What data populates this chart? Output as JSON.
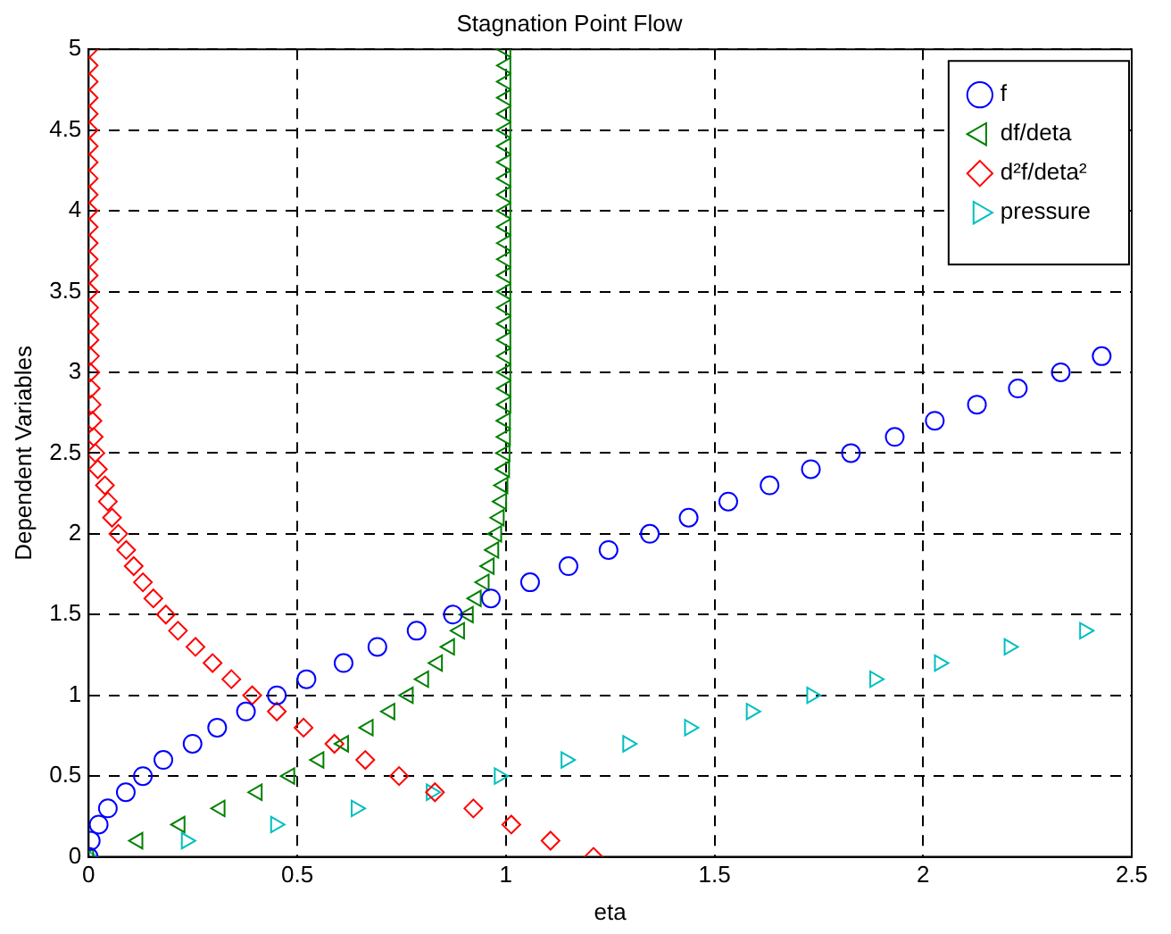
{
  "chart_data": {
    "type": "scatter",
    "title": "Stagnation Point Flow",
    "xlabel": "eta",
    "ylabel": "Dependent Variables",
    "xlim": [
      0,
      2.5
    ],
    "ylim": [
      0,
      5
    ],
    "xticks": [
      0,
      0.5,
      1,
      1.5,
      2,
      2.5
    ],
    "yticks": [
      0,
      0.5,
      1,
      1.5,
      2,
      2.5,
      3,
      3.5,
      4,
      4.5,
      5
    ],
    "grid": true,
    "legend": "top right",
    "series": [
      {
        "name": "f",
        "color": "#0000ff",
        "marker": "circle",
        "x": [
          0,
          0.005,
          0.024,
          0.046,
          0.089,
          0.13,
          0.179,
          0.249,
          0.308,
          0.377,
          0.451,
          0.522,
          0.611,
          0.692,
          0.786,
          0.873,
          0.964,
          1.058,
          1.15,
          1.246,
          1.345,
          1.438,
          1.533,
          1.632,
          1.731,
          1.827,
          1.932,
          2.028,
          2.129,
          2.227,
          2.33,
          2.428
        ],
        "values": [
          0,
          0.1,
          0.2,
          0.3,
          0.4,
          0.5,
          0.6,
          0.7,
          0.8,
          0.9,
          1,
          1.1,
          1.2,
          1.3,
          1.4,
          1.5,
          1.6,
          1.7,
          1.8,
          1.9,
          2,
          2.1,
          2.2,
          2.3,
          2.4,
          2.5,
          2.6,
          2.7,
          2.8,
          2.9,
          3,
          3.1
        ]
      },
      {
        "name": "df/deta",
        "color": "#008000",
        "marker": "triangle-left",
        "x": [
          0,
          0.118,
          0.219,
          0.315,
          0.404,
          0.482,
          0.552,
          0.611,
          0.67,
          0.722,
          0.766,
          0.803,
          0.836,
          0.865,
          0.889,
          0.91,
          0.929,
          0.948,
          0.96,
          0.971,
          0.978,
          0.984,
          0.99,
          0.993,
          0.997,
          0.998,
          0.999,
          0.999,
          1,
          1,
          1,
          1,
          1,
          1,
          1,
          1,
          1,
          1,
          1,
          1,
          1,
          1,
          1,
          1,
          1,
          1,
          1,
          1,
          1,
          1,
          1
        ],
        "values": [
          0,
          0.1,
          0.2,
          0.3,
          0.4,
          0.5,
          0.6,
          0.7,
          0.8,
          0.9,
          1,
          1.1,
          1.2,
          1.3,
          1.4,
          1.5,
          1.6,
          1.7,
          1.8,
          1.9,
          2,
          2.1,
          2.2,
          2.3,
          2.4,
          2.5,
          2.6,
          2.7,
          2.8,
          2.9,
          3,
          3.1,
          3.2,
          3.3,
          3.4,
          3.5,
          3.6,
          3.7,
          3.8,
          3.9,
          4,
          4.1,
          4.2,
          4.3,
          4.4,
          4.5,
          4.6,
          4.7,
          4.8,
          4.9,
          5
        ]
      },
      {
        "name": "d²f/deta²",
        "color": "#ff0000",
        "marker": "diamond",
        "x": [
          1.21,
          1.107,
          1.013,
          0.922,
          0.83,
          0.744,
          0.663,
          0.589,
          0.515,
          0.451,
          0.392,
          0.342,
          0.297,
          0.256,
          0.214,
          0.185,
          0.155,
          0.13,
          0.108,
          0.09,
          0.071,
          0.056,
          0.046,
          0.039,
          0.022,
          0.016,
          0.012,
          0.009,
          0.007,
          0.005,
          0.004,
          0.003,
          0.002,
          0.002,
          0.001,
          0.001,
          0,
          0,
          0,
          0,
          0,
          0,
          0,
          0,
          0,
          0,
          0,
          0,
          0,
          0,
          0
        ],
        "values": [
          0,
          0.1,
          0.2,
          0.3,
          0.4,
          0.5,
          0.6,
          0.7,
          0.8,
          0.9,
          1,
          1.1,
          1.2,
          1.3,
          1.4,
          1.5,
          1.6,
          1.7,
          1.8,
          1.9,
          2,
          2.1,
          2.2,
          2.3,
          2.4,
          2.5,
          2.6,
          2.7,
          2.8,
          2.9,
          3,
          3.1,
          3.2,
          3.3,
          3.4,
          3.5,
          3.6,
          3.7,
          3.8,
          3.9,
          4,
          4.1,
          4.2,
          4.3,
          4.4,
          4.5,
          4.6,
          4.7,
          4.8,
          4.9,
          5
        ]
      },
      {
        "name": "pressure",
        "color": "#00bfbf",
        "marker": "triangle-right",
        "x": [
          0,
          0.234,
          0.448,
          0.641,
          0.821,
          0.984,
          1.144,
          1.292,
          1.44,
          1.588,
          1.733,
          1.884,
          2.039,
          2.206,
          2.387
        ],
        "values": [
          0,
          0.1,
          0.2,
          0.3,
          0.4,
          0.5,
          0.6,
          0.7,
          0.8,
          0.9,
          1,
          1.1,
          1.2,
          1.3,
          1.4
        ]
      }
    ]
  }
}
